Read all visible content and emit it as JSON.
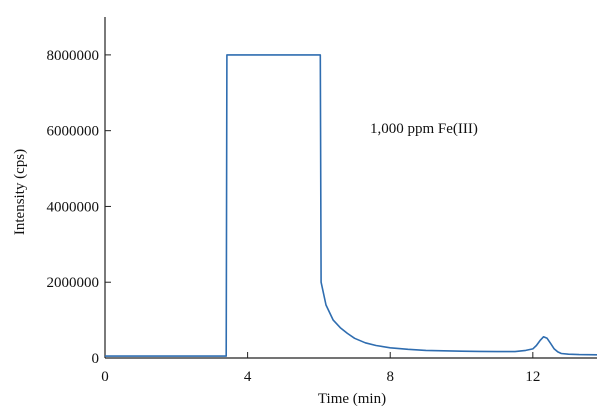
{
  "chart_data": {
    "type": "line",
    "title": "",
    "xlabel": "Time (min)",
    "ylabel": "Intensity (cps)",
    "xlim": [
      0,
      13.8
    ],
    "ylim": [
      0,
      9000000
    ],
    "x_ticks": [
      0,
      4,
      8,
      12
    ],
    "x_tick_labels": [
      "0",
      "4",
      "8",
      "12"
    ],
    "y_ticks": [
      0,
      2000000,
      4000000,
      6000000,
      8000000
    ],
    "y_tick_labels": [
      "0",
      "2000000",
      "4000000",
      "6000000",
      "8000000"
    ],
    "grid": false,
    "legend": "none",
    "annotation": "1,000 ppm Fe(III)",
    "line_color": "#2f6db0",
    "series": [
      {
        "x": [
          0,
          3.4,
          3.42,
          3.44,
          6.02,
          6.04,
          6.06,
          6.2,
          6.4,
          6.6,
          6.8,
          7.0,
          7.3,
          7.6,
          8.0,
          8.5,
          9.0,
          9.5,
          10.0,
          10.5,
          11.0,
          11.5,
          11.8,
          12.0,
          12.1,
          12.2,
          12.3,
          12.4,
          12.5,
          12.6,
          12.7,
          12.8,
          13.0,
          13.3,
          13.8
        ],
        "y": [
          50000,
          50000,
          8000000,
          8000000,
          8000000,
          8000000,
          2000000,
          1400000,
          1000000,
          800000,
          650000,
          520000,
          400000,
          330000,
          270000,
          230000,
          200000,
          190000,
          180000,
          175000,
          170000,
          170000,
          200000,
          240000,
          330000,
          460000,
          560000,
          520000,
          380000,
          240000,
          160000,
          120000,
          100000,
          90000,
          85000
        ]
      }
    ]
  }
}
